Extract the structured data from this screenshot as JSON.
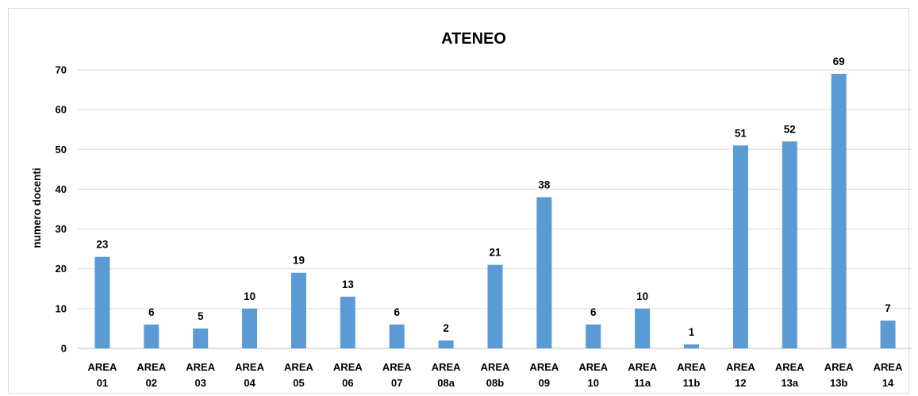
{
  "chart_data": {
    "type": "bar",
    "title": "ATENEO",
    "ylabel": "numero docenti",
    "xlabel": "",
    "ylim": [
      0,
      70
    ],
    "yticks": [
      0,
      10,
      20,
      30,
      40,
      50,
      60,
      70
    ],
    "grid": true,
    "legend": "none",
    "bar_color": "#5b9bd5",
    "categories": [
      [
        "AREA",
        "01"
      ],
      [
        "AREA",
        "02"
      ],
      [
        "AREA",
        "03"
      ],
      [
        "AREA",
        "04"
      ],
      [
        "AREA",
        "05"
      ],
      [
        "AREA",
        "06"
      ],
      [
        "AREA",
        "07"
      ],
      [
        "AREA",
        "08a"
      ],
      [
        "AREA",
        "08b"
      ],
      [
        "AREA",
        "09"
      ],
      [
        "AREA",
        "10"
      ],
      [
        "AREA",
        "11a"
      ],
      [
        "AREA",
        "11b"
      ],
      [
        "AREA",
        "12"
      ],
      [
        "AREA",
        "13a"
      ],
      [
        "AREA",
        "13b"
      ],
      [
        "AREA",
        "14"
      ]
    ],
    "values": [
      23,
      6,
      5,
      10,
      19,
      13,
      6,
      2,
      21,
      38,
      6,
      10,
      1,
      51,
      52,
      69,
      7
    ]
  }
}
